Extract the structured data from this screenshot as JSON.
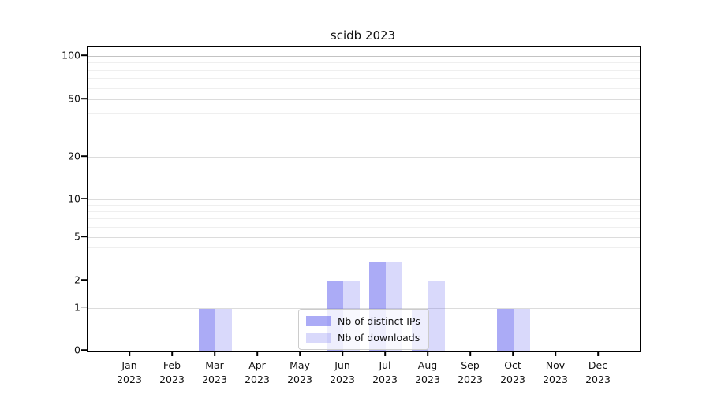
{
  "title": "scidb 2023",
  "chart_data": {
    "type": "bar",
    "title": "scidb 2023",
    "xlabel": "",
    "ylabel": "",
    "year": "2023",
    "categories": [
      "Jan",
      "Feb",
      "Mar",
      "Apr",
      "May",
      "Jun",
      "Jul",
      "Aug",
      "Sep",
      "Oct",
      "Nov",
      "Dec"
    ],
    "series": [
      {
        "name": "Nb of distinct IPs",
        "color": "rgba(102,102,238,0.55)",
        "values": [
          0,
          0,
          1,
          0,
          0,
          2,
          3,
          1,
          0,
          1,
          0,
          0
        ]
      },
      {
        "name": "Nb of downloads",
        "color": "rgba(102,102,238,0.25)",
        "values": [
          0,
          0,
          1,
          0,
          0,
          2,
          3,
          2,
          0,
          1,
          0,
          0
        ]
      }
    ],
    "yticks": [
      0,
      1,
      2,
      5,
      10,
      20,
      50,
      100
    ],
    "minor_yticks": [
      3,
      4,
      6,
      7,
      8,
      9,
      30,
      40,
      60,
      70,
      80,
      90
    ],
    "ylim": [
      0,
      100
    ],
    "yscale": "log-with-zero",
    "grid": true,
    "legend_position": "lower-center"
  },
  "colors": {
    "bar_dark": "rgba(102,102,238,0.55)",
    "bar_light": "rgba(102,102,238,0.25)",
    "grid_major": "#dcdcdc",
    "grid_top": "#c3c3c3",
    "grid_minor": "#efefef",
    "axis": "#000000",
    "text": "#111111"
  }
}
